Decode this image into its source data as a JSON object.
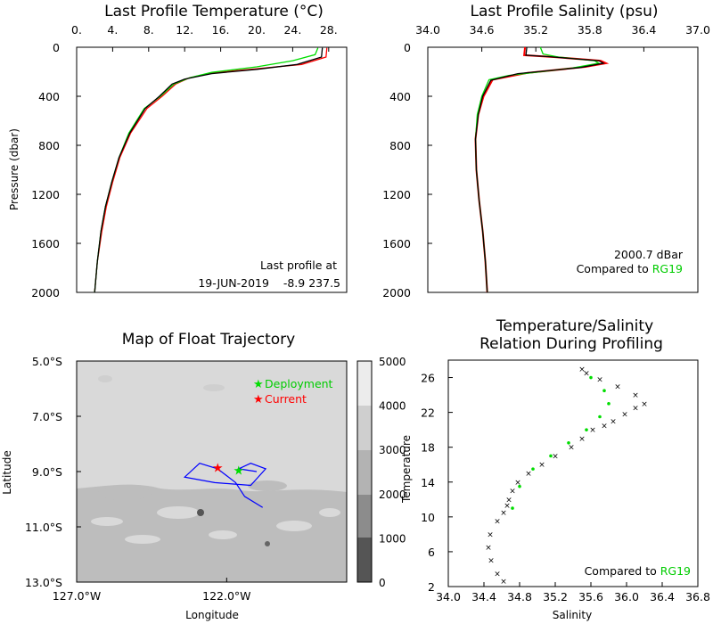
{
  "colors": {
    "obs": "#ff0000",
    "clim": "#00dd00",
    "mean": "#000000",
    "track": "#0000ff"
  },
  "temp_panel": {
    "title": "Last Profile Temperature (°C)",
    "ylabel": "Pressure (dbar)",
    "xticks": [
      "0.",
      "4.",
      "8.",
      "12.",
      "16.",
      "20.",
      "24.",
      "28."
    ],
    "yticks": [
      "0",
      "400",
      "800",
      "1200",
      "1600",
      "2000"
    ],
    "note_line1": "Last profile at",
    "note_line2": "19-JUN-2019    -8.9 237.5"
  },
  "sal_panel": {
    "title": "Last Profile Salinity (psu)",
    "xticks": [
      "34.0",
      "34.6",
      "35.2",
      "35.8",
      "36.4",
      "37.0"
    ],
    "yticks": [
      "0",
      "400",
      "800",
      "1200",
      "1600",
      "2000"
    ],
    "note_line1": "2000.7 dBar",
    "note_line2_prefix": "Compared to ",
    "note_line2_ref": "RG19"
  },
  "map_panel": {
    "title": "Map of Float Trajectory",
    "xlabel": "Longitude",
    "ylabel": "Latitude",
    "xticks": [
      "127.0°W",
      "122.0°W"
    ],
    "yticks": [
      "5.0°S",
      "7.0°S",
      "9.0°S",
      "11.0°S",
      "13.0°S"
    ],
    "legend_deployment": "Deployment",
    "legend_current": "Current",
    "colorbar_ticks": [
      "5000",
      "4000",
      "3000",
      "2000",
      "1000",
      "0"
    ]
  },
  "ts_panel": {
    "title_line1": "Temperature/Salinity",
    "title_line2": "Relation During Profiling",
    "xlabel": "Salinity",
    "ylabel": "Temperature",
    "xticks": [
      "34.0",
      "34.4",
      "34.8",
      "35.2",
      "35.6",
      "36.0",
      "36.4",
      "36.8"
    ],
    "yticks": [
      "2",
      "6",
      "10",
      "14",
      "18",
      "22",
      "26"
    ],
    "note_prefix": "Compared to ",
    "note_ref": "RG19"
  },
  "chart_data": [
    {
      "type": "line",
      "title": "Last Profile Temperature (°C)",
      "ylabel": "Pressure (dbar)",
      "xlim": [
        0,
        30
      ],
      "ylim": [
        2000,
        0
      ],
      "series": [
        {
          "color": "red",
          "x": [
            27.8,
            27.7,
            25.0,
            20.0,
            15.0,
            12.5,
            11.0,
            9.5,
            7.8,
            6.0,
            4.8,
            4.0,
            3.3,
            2.8,
            2.3,
            2.0
          ],
          "y": [
            5,
            80,
            140,
            175,
            210,
            250,
            300,
            400,
            500,
            700,
            900,
            1100,
            1300,
            1500,
            1750,
            2000
          ]
        },
        {
          "color": "green",
          "x": [
            26.8,
            26.5,
            24.0,
            20.0,
            15.0,
            12.5,
            10.8,
            9.3,
            7.5,
            5.8,
            4.7,
            3.9,
            3.2,
            2.7,
            2.3,
            2.0
          ],
          "y": [
            5,
            60,
            110,
            160,
            205,
            250,
            300,
            400,
            500,
            700,
            900,
            1100,
            1300,
            1500,
            1750,
            2000
          ]
        },
        {
          "color": "black",
          "x": [
            27.3,
            27.2,
            24.5,
            20.0,
            15.0,
            12.0,
            10.6,
            9.2,
            7.6,
            5.9,
            4.7,
            3.9,
            3.2,
            2.7,
            2.3,
            2.0
          ],
          "y": [
            5,
            80,
            140,
            180,
            215,
            260,
            300,
            400,
            500,
            700,
            900,
            1100,
            1300,
            1500,
            1750,
            2000
          ]
        }
      ]
    },
    {
      "type": "line",
      "title": "Last Profile Salinity (psu)",
      "xlim": [
        34.0,
        37.0
      ],
      "ylim": [
        2000,
        0
      ],
      "series": [
        {
          "color": "red",
          "x": [
            35.08,
            35.07,
            35.4,
            35.92,
            35.98,
            35.75,
            35.1,
            34.72,
            34.62,
            34.56,
            34.53,
            34.54,
            34.57,
            34.61,
            34.64,
            34.66
          ],
          "y": [
            0,
            65,
            80,
            110,
            130,
            160,
            210,
            265,
            400,
            550,
            750,
            1000,
            1250,
            1500,
            1750,
            2000
          ]
        },
        {
          "color": "green",
          "x": [
            35.25,
            35.28,
            35.45,
            35.85,
            35.9,
            35.6,
            34.9,
            34.68,
            34.6,
            34.55,
            34.53,
            34.54,
            34.57,
            34.61,
            34.64,
            34.66
          ],
          "y": [
            0,
            55,
            80,
            110,
            130,
            170,
            230,
            265,
            400,
            550,
            750,
            1000,
            1250,
            1500,
            1750,
            2000
          ]
        },
        {
          "color": "black",
          "x": [
            35.1,
            35.09,
            35.4,
            35.9,
            35.95,
            35.7,
            35.0,
            34.7,
            34.61,
            34.56,
            34.53,
            34.54,
            34.57,
            34.61,
            34.64,
            34.66
          ],
          "y": [
            0,
            65,
            80,
            110,
            130,
            165,
            215,
            270,
            400,
            550,
            750,
            1000,
            1250,
            1500,
            1750,
            2000
          ]
        }
      ]
    },
    {
      "type": "map",
      "title": "Map of Float Trajectory",
      "xlabel": "Longitude",
      "ylabel": "Latitude",
      "xlim": [
        -127.0,
        -118.0
      ],
      "ylim": [
        -13.0,
        -5.0
      ],
      "colorbar": [
        0,
        5000
      ],
      "trajectory": {
        "lon": [
          -120.8,
          -121.4,
          -121.7,
          -122.3,
          -122.9,
          -123.4,
          -122.4,
          -121.2,
          -120.7,
          -121.2,
          -121.6,
          -121.0
        ],
        "lat": [
          -10.3,
          -9.9,
          -9.4,
          -8.9,
          -8.7,
          -9.2,
          -9.4,
          -9.5,
          -8.9,
          -8.7,
          -8.9,
          -9.0
        ]
      },
      "deployment": {
        "lon": -121.6,
        "lat": -8.95
      },
      "current": {
        "lon": -122.3,
        "lat": -8.85
      }
    },
    {
      "type": "scatter",
      "title": "Temperature/Salinity Relation During Profiling",
      "xlabel": "Salinity",
      "ylabel": "Temperature",
      "xlim": [
        34.0,
        36.8
      ],
      "ylim": [
        2,
        28
      ],
      "series": [
        {
          "color": "black",
          "x": [
            34.62,
            34.55,
            34.48,
            34.45,
            34.47,
            34.55,
            34.62,
            34.66,
            34.68,
            34.72,
            34.78,
            34.9,
            35.05,
            35.2,
            35.38,
            35.5,
            35.62,
            35.75,
            35.85,
            35.98,
            36.1,
            36.2,
            36.1,
            35.9,
            35.7,
            35.55,
            35.5
          ],
          "y": [
            2.6,
            3.5,
            5.0,
            6.5,
            8.0,
            9.5,
            10.5,
            11.3,
            12.0,
            13.0,
            14.0,
            15.0,
            16.0,
            17.0,
            18.0,
            19.0,
            20.0,
            20.5,
            21.0,
            21.8,
            22.5,
            23.0,
            24.0,
            25.0,
            25.8,
            26.5,
            27.0
          ]
        },
        {
          "color": "green",
          "x": [
            34.72,
            34.8,
            34.95,
            35.15,
            35.35,
            35.55,
            35.7,
            35.8,
            35.75,
            35.6
          ],
          "y": [
            11.0,
            13.5,
            15.5,
            17.0,
            18.5,
            20.0,
            21.5,
            23.0,
            24.5,
            26.0
          ]
        }
      ]
    }
  ]
}
